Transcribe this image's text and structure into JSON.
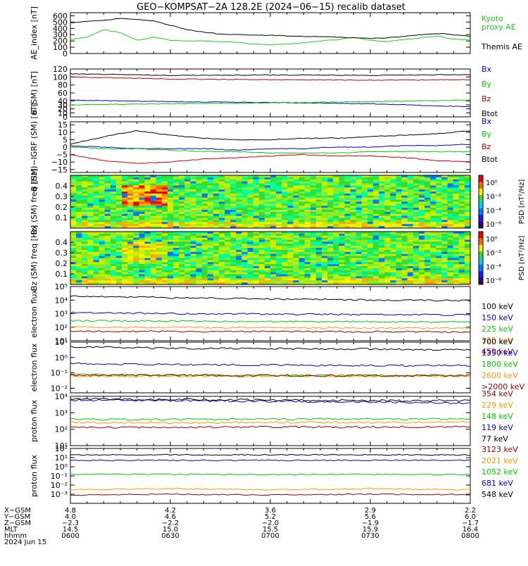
{
  "title": "GEO−KOMPSAT−2A 128.2E (2024−06−15) recalib dataset",
  "colors": {
    "black": "#000000",
    "blue": "#0000cc",
    "green": "#00cc00",
    "red": "#cc0000",
    "orange": "#ff9900",
    "darkred": "#990000",
    "kyoto": "#22cc22"
  },
  "chart_data": [
    {
      "type": "line",
      "ylabel": "AE_index [nT]",
      "ylim": [
        0,
        650
      ],
      "yticks": [
        "0",
        "100",
        "200",
        "300",
        "400",
        "500",
        "600"
      ],
      "legend": [
        "Kyoto",
        "proxy AE",
        "Themis AE"
      ],
      "x": [
        "0600",
        "0605",
        "0610",
        "0615",
        "0620",
        "0625",
        "0630",
        "0635",
        "0640",
        "0645",
        "0650",
        "0655",
        "0700",
        "0705",
        "0710",
        "0715",
        "0720",
        "0725",
        "0730",
        "0735",
        "0740",
        "0745",
        "0750",
        "0755",
        "0800"
      ],
      "series": [
        {
          "name": "Kyoto proxy AE",
          "color": "#22cc22",
          "values": [
            220,
            260,
            380,
            330,
            210,
            260,
            210,
            200,
            200,
            190,
            180,
            150,
            140,
            150,
            170,
            200,
            220,
            260,
            210,
            190,
            220,
            250,
            280,
            230,
            220
          ]
        },
        {
          "name": "Themis AE",
          "color": "#000000",
          "values": [
            490,
            510,
            530,
            560,
            540,
            520,
            450,
            380,
            340,
            310,
            300,
            290,
            290,
            280,
            270,
            270,
            260,
            250,
            240,
            250,
            270,
            300,
            320,
            300,
            270
          ]
        }
      ]
    },
    {
      "type": "line",
      "ylabel": "B (SM) [nT]",
      "ylim": [
        0,
        120
      ],
      "yticks": [
        "0",
        "10",
        "20",
        "30",
        "40",
        "60",
        "80",
        "100",
        "120"
      ],
      "legend": [
        "Bx",
        "By",
        "Bz",
        "Btot"
      ],
      "x": [
        "0600",
        "0630",
        "0700",
        "0730",
        "0800"
      ],
      "series": [
        {
          "name": "Bx",
          "color": "#0000cc",
          "values": [
            42,
            38,
            36,
            33,
            25
          ]
        },
        {
          "name": "By",
          "color": "#00cc00",
          "values": [
            30,
            33,
            35,
            38,
            42
          ]
        },
        {
          "name": "Bz",
          "color": "#cc0000",
          "values": [
            100,
            95,
            93,
            92,
            93
          ]
        },
        {
          "name": "Btot",
          "color": "#000000",
          "values": [
            108,
            104,
            105,
            104,
            106
          ]
        }
      ]
    },
    {
      "type": "line",
      "ylabel": "B (SM)−IGRF (SM) [nT]",
      "ylim": [
        -17,
        17
      ],
      "yticks": [
        "−15",
        "−10",
        "−5",
        "0",
        "5",
        "10",
        "15"
      ],
      "legend": [
        "Bx",
        "By",
        "Bz",
        "Btot"
      ],
      "x": [
        "0600",
        "0610",
        "0620",
        "0630",
        "0640",
        "0650",
        "0700",
        "0710",
        "0720",
        "0730",
        "0740",
        "0750",
        "0800"
      ],
      "series": [
        {
          "name": "Bx",
          "color": "#0000cc",
          "values": [
            1,
            0,
            -1,
            -1,
            -1,
            -2,
            -1,
            -1,
            0,
            0,
            1,
            1,
            2
          ]
        },
        {
          "name": "By",
          "color": "#00cc00",
          "values": [
            0,
            -1,
            -1,
            -2,
            -3,
            -3,
            -4,
            -4,
            -4,
            -3,
            -3,
            -3,
            -3
          ]
        },
        {
          "name": "Bz",
          "color": "#cc0000",
          "values": [
            -5,
            -9,
            -11,
            -10,
            -8,
            -7,
            -6,
            -5,
            -6,
            -6,
            -7,
            -9,
            -10
          ]
        },
        {
          "name": "Btot",
          "color": "#000000",
          "values": [
            2,
            7,
            11,
            8,
            6,
            5,
            5,
            6,
            6,
            7,
            8,
            9,
            11
          ]
        }
      ]
    },
    {
      "type": "heatmap",
      "ylabel": "Bx (SM) freq [Hz]",
      "yticks": [
        "0.1",
        "0.2",
        "0.3",
        "0.4"
      ],
      "colorbar_label": "PSD [nT²/Hz]",
      "colorbar_ticks": [
        "10⁰",
        "10⁻²",
        "10⁻⁴",
        "10⁻⁶"
      ]
    },
    {
      "type": "heatmap",
      "ylabel": "Bz (SM) freq [Hz]",
      "yticks": [
        "0.1",
        "0.2",
        "0.3",
        "0.4"
      ],
      "colorbar_label": "PSD [nT²/Hz]",
      "colorbar_ticks": [
        "10⁰",
        "10⁻²",
        "10⁻⁴",
        "10⁻⁶"
      ]
    },
    {
      "type": "line",
      "ylabel": "electron flux",
      "log": true,
      "ylim_exp": [
        1,
        5
      ],
      "yticks": [
        "10¹",
        "10²",
        "10³",
        "10⁴",
        "10⁵"
      ],
      "legend": [
        "100 keV",
        "150 keV",
        "225 keV",
        "325 keV",
        "450 keV"
      ],
      "series": [
        {
          "name": "100 keV",
          "color": "#000000",
          "values": [
            20000,
            15000,
            12000,
            10000,
            9000
          ]
        },
        {
          "name": "150 keV",
          "color": "#0000cc",
          "values": [
            1200,
            1000,
            900,
            850,
            800
          ]
        },
        {
          "name": "225 keV",
          "color": "#00cc00",
          "values": [
            300,
            280,
            260,
            250,
            240
          ]
        },
        {
          "name": "325 keV",
          "color": "#ff9900",
          "values": [
            100,
            95,
            90,
            88,
            85
          ]
        },
        {
          "name": "450 keV",
          "color": "#990000",
          "values": [
            50,
            48,
            47,
            46,
            45
          ]
        }
      ]
    },
    {
      "type": "line",
      "ylabel": "electron flux",
      "log": true,
      "ylim_exp": [
        -2.3,
        1
      ],
      "yticks": [
        "10⁻²",
        "10⁻¹",
        "10⁰",
        "10¹"
      ],
      "legend": [
        "700 keV",
        "1350 keV",
        "1800 keV",
        "2600 keV",
        ">2000 keV"
      ],
      "series": [
        {
          "name": "700 keV",
          "color": "#000000",
          "values": [
            5,
            4,
            3.8,
            3.5,
            3.2
          ]
        },
        {
          "name": "1350 keV",
          "color": "#0000cc",
          "values": [
            0.4,
            0.35,
            0.32,
            0.3,
            0.3
          ]
        },
        {
          "name": "1800 keV",
          "color": "#00cc00",
          "values": [
            0.08,
            0.07,
            0.07,
            0.07,
            0.07
          ]
        },
        {
          "name": "2600 keV",
          "color": "#ff9900",
          "values": [
            0.06,
            0.06,
            0.06,
            0.06,
            0.06
          ]
        },
        {
          "name": ">2000 keV",
          "color": "#990000",
          "values": [
            0.07,
            0.07,
            0.065,
            0.065,
            0.065
          ]
        }
      ]
    },
    {
      "type": "line",
      "ylabel": "proton flux",
      "log": true,
      "ylim_exp": [
        1,
        4
      ],
      "yticks": [
        "10¹",
        "10²",
        "10³",
        "10⁴"
      ],
      "legend": [
        "354 keV",
        "229 keV",
        "148 keV",
        "119 keV",
        "77 keV"
      ],
      "series": [
        {
          "name": "354 keV",
          "color": "#990000",
          "values": [
            130,
            130,
            135,
            135,
            140
          ]
        },
        {
          "name": "229 keV",
          "color": "#ff9900",
          "values": [
            250,
            250,
            260,
            260,
            260
          ]
        },
        {
          "name": "148 keV",
          "color": "#00cc00",
          "values": [
            400,
            400,
            410,
            420,
            420
          ]
        },
        {
          "name": "119 keV",
          "color": "#0000cc",
          "values": [
            6000,
            5500,
            5000,
            4500,
            4000
          ]
        },
        {
          "name": "77 keV",
          "color": "#000000",
          "values": [
            7000,
            6500,
            6000,
            5500,
            5500
          ]
        }
      ]
    },
    {
      "type": "line",
      "ylabel": "proton flux",
      "log": true,
      "ylim_exp": [
        -4,
        2
      ],
      "yticks": [
        "10⁻³",
        "10⁻²",
        "10⁻¹",
        "10⁰",
        "10¹",
        "10²"
      ],
      "legend": [
        "3123 keV",
        "2021 keV",
        "1052 keV",
        "681 keV",
        "548 keV"
      ],
      "series": [
        {
          "name": "3123 keV",
          "color": "#990000",
          "values": [
            0.0008,
            0.001,
            0.0008,
            0.001,
            0.0009
          ]
        },
        {
          "name": "2021 keV",
          "color": "#ff9900",
          "values": [
            0.003,
            0.004,
            0.003,
            0.004,
            0.003
          ]
        },
        {
          "name": "1052 keV",
          "color": "#00cc00",
          "values": [
            0.15,
            0.15,
            0.14,
            0.15,
            0.14
          ]
        },
        {
          "name": "681 keV",
          "color": "#0000cc",
          "values": [
            5,
            5,
            5,
            5,
            5
          ]
        },
        {
          "name": "548 keV",
          "color": "#000000",
          "values": [
            20,
            20,
            20,
            20,
            20
          ]
        }
      ]
    }
  ],
  "ephemeris": {
    "labels": [
      "X−GSM",
      "Y−GSM",
      "Z−GSM",
      "MLT",
      "hhmm",
      "2024 Jun 15"
    ],
    "columns": [
      [
        "4.8",
        "4.0",
        "−2.3",
        "14.5",
        "0600"
      ],
      [
        "4.2",
        "4.6",
        "−2.2",
        "15.0",
        "0630"
      ],
      [
        "3.6",
        "5.2",
        "−2.0",
        "15.5",
        "0700"
      ],
      [
        "2.9",
        "5.6",
        "−1.9",
        "15.9",
        "0730"
      ],
      [
        "2.2",
        "6.0",
        "−1.7",
        "16.4",
        "0800"
      ]
    ]
  }
}
